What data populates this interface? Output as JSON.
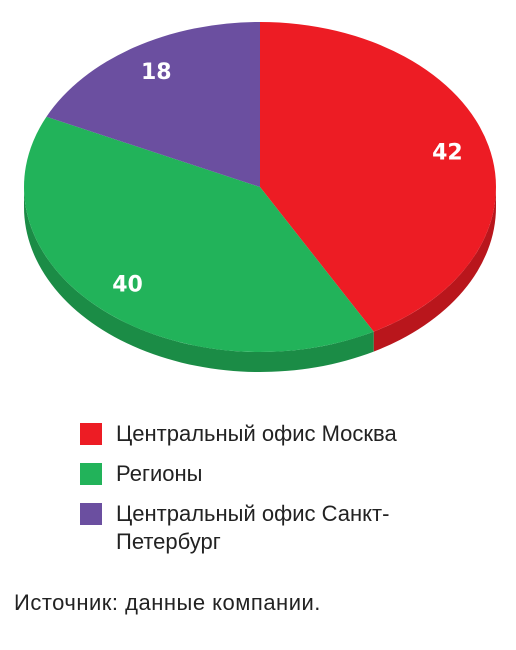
{
  "chart_data": {
    "type": "pie",
    "categories": [
      "Центральный офис Москва",
      "Регионы",
      "Центральный офис Санкт-Петербург"
    ],
    "values": [
      42,
      40,
      18
    ],
    "colors": [
      "#ed1c24",
      "#22b35a",
      "#6b4fa0"
    ],
    "source": "Источник: данные компании."
  }
}
